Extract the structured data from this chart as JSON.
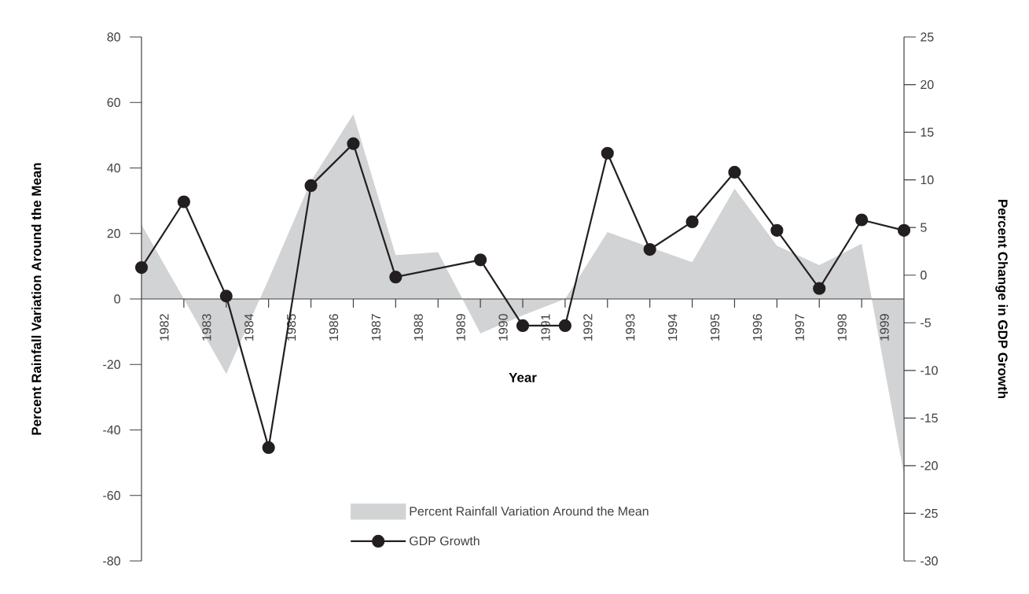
{
  "chart_data": {
    "type": "area",
    "xlabel": "Year",
    "ylabel": "Percent Rainfall Variation Around the Mean",
    "y2label": "Percent Change in GDP Growth",
    "x": [
      1981.5,
      1982.5,
      1983.5,
      1984.5,
      1985.5,
      1986.5,
      1987.5,
      1988.5,
      1989.5,
      1990.5,
      1991.5,
      1992.5,
      1993.5,
      1994.5,
      1995.5,
      1996.5,
      1997.5,
      1998.5,
      1999.5
    ],
    "xlim": [
      1981.5,
      1999.5
    ],
    "xticks": [
      1982,
      1983,
      1984,
      1985,
      1986,
      1987,
      1988,
      1989,
      1990,
      1991,
      1992,
      1993,
      1994,
      1995,
      1996,
      1997,
      1998,
      1999,
      {
        "value": 1982.5,
        "label": null
      },
      {
        "value": 1983.5,
        "label": null
      },
      {
        "value": 1984.5,
        "label": null
      },
      {
        "value": 1985.5,
        "label": null
      },
      {
        "value": 1986.5,
        "label": null
      },
      {
        "value": 1987.5,
        "label": null
      },
      {
        "value": 1988.5,
        "label": null
      },
      {
        "value": 1989.5,
        "label": null
      },
      {
        "value": 1990.5,
        "label": null
      },
      {
        "value": 1991.5,
        "label": null
      },
      {
        "value": 1992.5,
        "label": null
      },
      {
        "value": 1993.5,
        "label": null
      },
      {
        "value": 1994.5,
        "label": null
      },
      {
        "value": 1995.5,
        "label": null
      },
      {
        "value": 1996.5,
        "label": null
      },
      {
        "value": 1997.5,
        "label": null
      },
      {
        "value": 1998.5,
        "label": null
      }
    ],
    "ylim": [
      -80,
      80
    ],
    "yticks": [
      -80,
      -60,
      -40,
      -20,
      0,
      20,
      40,
      60,
      80
    ],
    "y2lim": [
      -30,
      25
    ],
    "y2ticks": [
      -30,
      -25,
      -20,
      -15,
      -10,
      -5,
      0,
      5,
      10,
      15,
      20,
      25
    ],
    "legend": "bottom",
    "series": [
      {
        "name": "Percent Rainfall Variation Around the Mean",
        "color": "#d1d3d4",
        "values": [
          22.7,
          0,
          -22.9,
          6,
          36,
          56.4,
          13.4,
          14.3,
          -10.5,
          -5,
          0,
          20.4,
          15.8,
          11.2,
          33.7,
          16.3,
          10.3,
          16.9,
          -53.7
        ]
      },
      {
        "name": "GDP Growth",
        "type": "line",
        "axis": "y2",
        "color": "#231f20",
        "marker": "circle",
        "line_style": "solid",
        "x": [
          1981.5,
          1982.5,
          1983.5,
          1984.5,
          1985.5,
          1986.5,
          1987.5,
          1989.5,
          1990.5,
          1991.5,
          1992.5,
          1993.5,
          1994.5,
          1995.5,
          1996.5,
          1997.5,
          1998.5,
          1999.5
        ],
        "values": [
          0.8,
          7.7,
          -2.2,
          -18.1,
          9.4,
          13.8,
          -0.2,
          1.6,
          -5.3,
          -5.3,
          12.8,
          2.7,
          5.6,
          10.8,
          4.7,
          -1.4,
          5.8,
          4.7
        ]
      }
    ]
  }
}
